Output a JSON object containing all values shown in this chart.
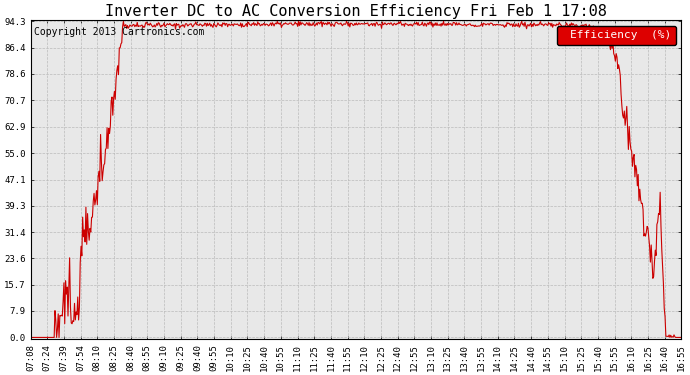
{
  "title": "Inverter DC to AC Conversion Efficiency Fri Feb 1 17:08",
  "copyright": "Copyright 2013 Cartronics.com",
  "legend_label": "Efficiency  (%)",
  "legend_bg": "#dd0000",
  "legend_text_color": "#ffffff",
  "line_color": "#cc0000",
  "bg_color": "#ffffff",
  "plot_bg_color": "#e8e8e8",
  "grid_color": "#bbbbbb",
  "yticks": [
    0.0,
    7.9,
    15.7,
    23.6,
    31.4,
    39.3,
    47.1,
    55.0,
    62.9,
    70.7,
    78.6,
    86.4,
    94.3
  ],
  "xtick_labels": [
    "07:08",
    "07:24",
    "07:39",
    "07:54",
    "08:10",
    "08:25",
    "08:40",
    "08:55",
    "09:10",
    "09:25",
    "09:40",
    "09:55",
    "10:10",
    "10:25",
    "10:40",
    "10:55",
    "11:10",
    "11:25",
    "11:40",
    "11:55",
    "12:10",
    "12:25",
    "12:40",
    "12:55",
    "13:10",
    "13:25",
    "13:40",
    "13:55",
    "14:10",
    "14:25",
    "14:40",
    "14:55",
    "15:10",
    "15:25",
    "15:40",
    "15:55",
    "16:10",
    "16:25",
    "16:40",
    "16:55"
  ],
  "ymin": 0.0,
  "ymax": 94.3,
  "title_fontsize": 11,
  "copyright_fontsize": 7,
  "tick_fontsize": 6.5,
  "legend_fontsize": 8
}
